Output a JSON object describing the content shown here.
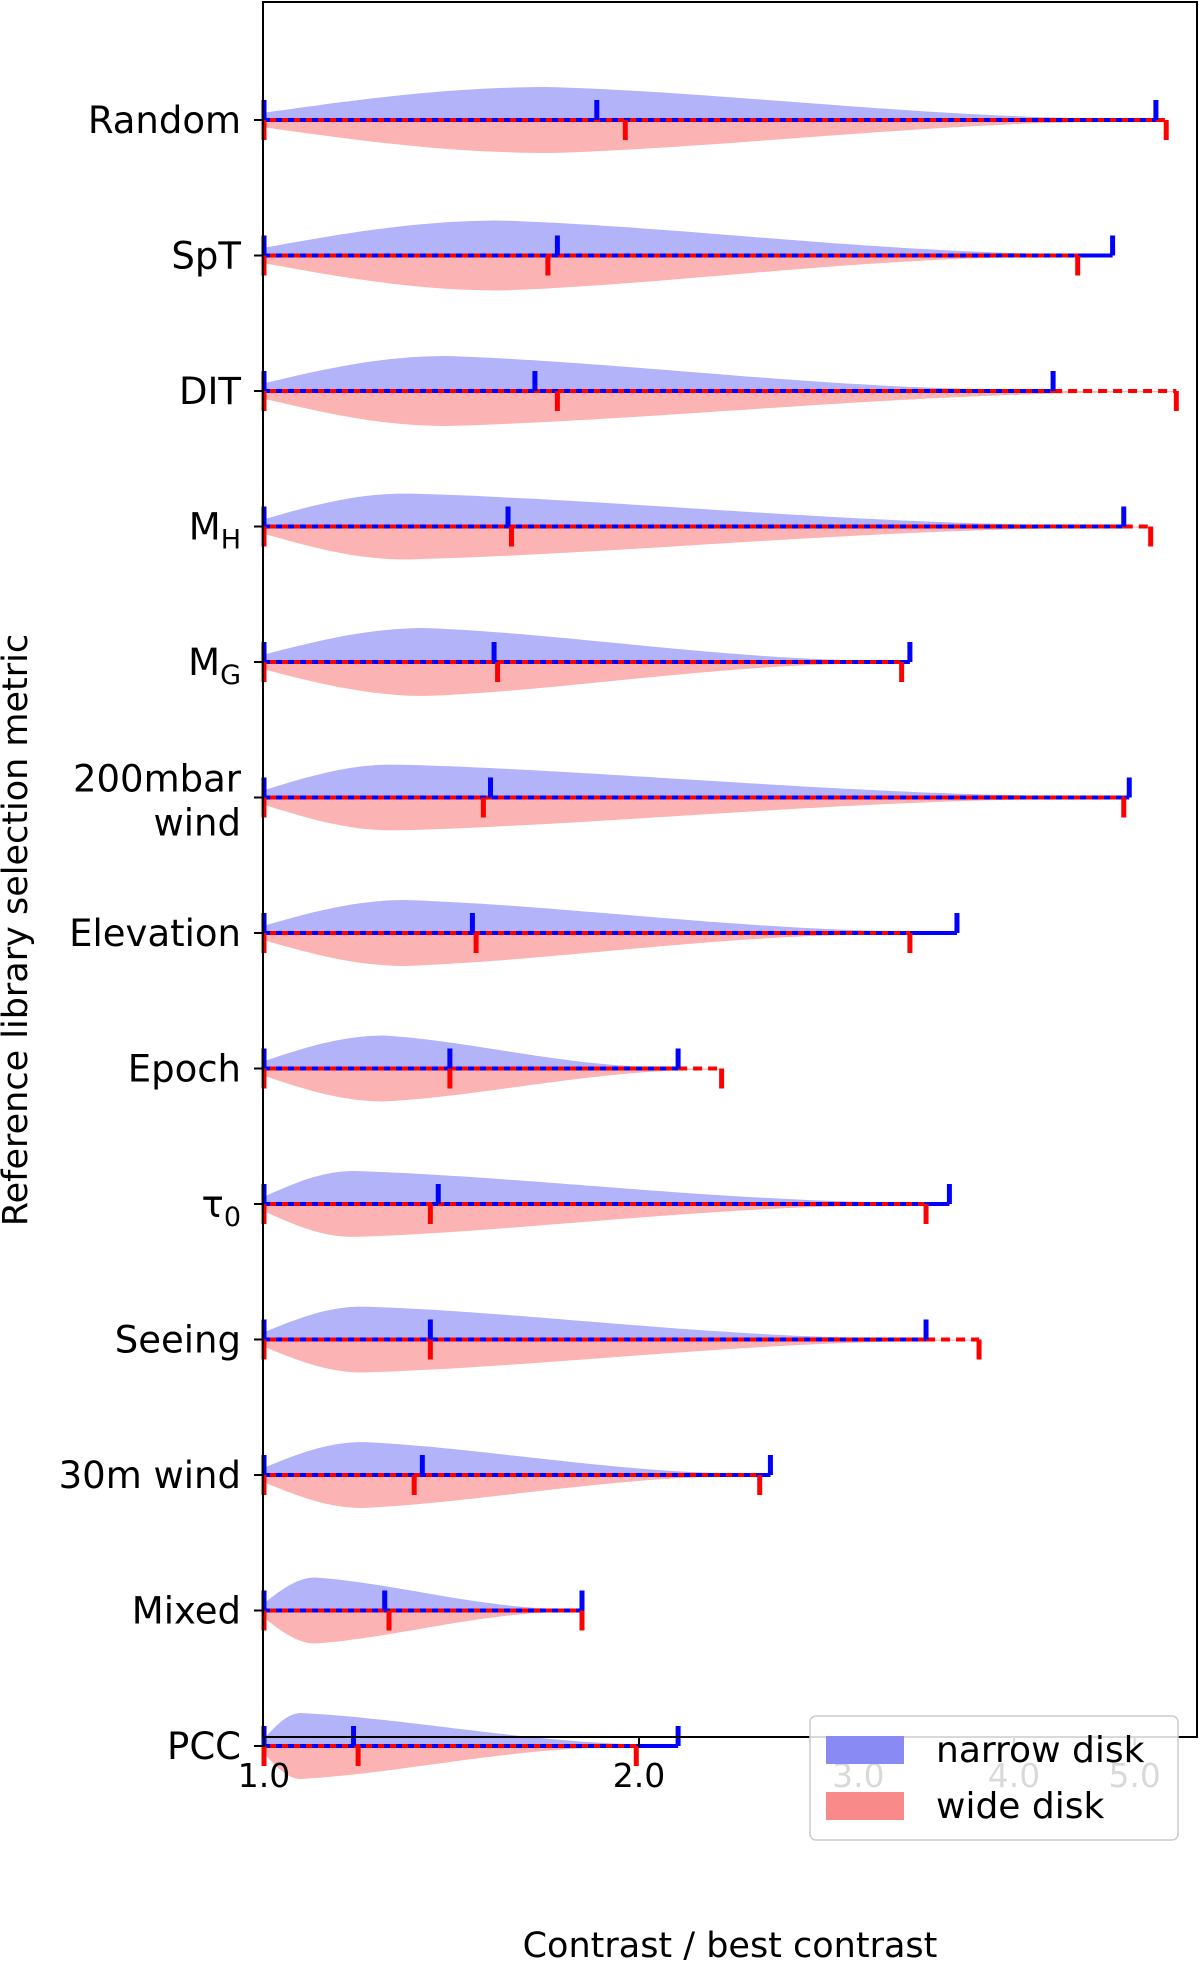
{
  "chart_data": {
    "type": "violin",
    "orientation": "horizontal",
    "xlabel": "Contrast / best contrast",
    "ylabel": "Reference library selection metric",
    "xscale": "log",
    "xlim": [
      1.0,
      5.6
    ],
    "xticks": [
      {
        "value": 1.0,
        "label": "1.0"
      },
      {
        "value": 2.0,
        "label": "2.0"
      },
      {
        "value": 3.0,
        "label": "3.0"
      },
      {
        "value": 4.0,
        "label": "4.0"
      },
      {
        "value": 5.0,
        "label": "5.0"
      }
    ],
    "legend": {
      "position": "bottom-right",
      "entries": [
        {
          "label": "narrow disk",
          "color": "#8a8af5"
        },
        {
          "label": "wide disk",
          "color": "#f88a8a"
        }
      ]
    },
    "colors": {
      "narrow": "#0000ff",
      "wide": "#ff0000",
      "narrow_fill": "#b3b3fa",
      "wide_fill": "#fbb3b3"
    },
    "categories": [
      {
        "label": "Random",
        "sub": "",
        "narrow": {
          "min": 1.0,
          "median": 1.85,
          "max": 5.2,
          "peak": 1.7,
          "halfwidth": 33
        },
        "wide": {
          "min": 1.0,
          "median": 1.95,
          "max": 5.3,
          "peak": 1.7,
          "halfwidth": 33
        }
      },
      {
        "label": "SpT",
        "sub": "",
        "narrow": {
          "min": 1.0,
          "median": 1.72,
          "max": 4.8,
          "peak": 1.55,
          "halfwidth": 35
        },
        "wide": {
          "min": 1.0,
          "median": 1.69,
          "max": 4.5,
          "peak": 1.55,
          "halfwidth": 35
        }
      },
      {
        "label": "DIT",
        "sub": "",
        "narrow": {
          "min": 1.0,
          "median": 1.65,
          "max": 4.3,
          "peak": 1.4,
          "halfwidth": 35
        },
        "wide": {
          "min": 1.0,
          "median": 1.72,
          "max": 5.4,
          "peak": 1.4,
          "halfwidth": 35
        }
      },
      {
        "label": "M",
        "sub": "H",
        "narrow": {
          "min": 1.0,
          "median": 1.57,
          "max": 4.9,
          "peak": 1.3,
          "halfwidth": 33
        },
        "wide": {
          "min": 1.0,
          "median": 1.58,
          "max": 5.15,
          "peak": 1.3,
          "halfwidth": 33
        }
      },
      {
        "label": "M",
        "sub": "G",
        "narrow": {
          "min": 1.0,
          "median": 1.53,
          "max": 3.3,
          "peak": 1.35,
          "halfwidth": 34
        },
        "wide": {
          "min": 1.0,
          "median": 1.54,
          "max": 3.25,
          "peak": 1.35,
          "halfwidth": 34
        }
      },
      {
        "label": "200mbar",
        "sub": "",
        "label2": "wind",
        "narrow": {
          "min": 1.0,
          "median": 1.52,
          "max": 4.95,
          "peak": 1.27,
          "halfwidth": 33
        },
        "wide": {
          "min": 1.0,
          "median": 1.5,
          "max": 4.9,
          "peak": 1.27,
          "halfwidth": 33
        }
      },
      {
        "label": "Elevation",
        "sub": "",
        "narrow": {
          "min": 1.0,
          "median": 1.47,
          "max": 3.6,
          "peak": 1.3,
          "halfwidth": 33
        },
        "wide": {
          "min": 1.0,
          "median": 1.48,
          "max": 3.3,
          "peak": 1.3,
          "halfwidth": 33
        }
      },
      {
        "label": "Epoch",
        "sub": "",
        "narrow": {
          "min": 1.0,
          "median": 1.41,
          "max": 2.15,
          "peak": 1.25,
          "halfwidth": 33
        },
        "wide": {
          "min": 1.0,
          "median": 1.41,
          "max": 2.33,
          "peak": 1.25,
          "halfwidth": 33
        }
      },
      {
        "label": "τ",
        "sub": "0",
        "narrow": {
          "min": 1.0,
          "median": 1.38,
          "max": 3.55,
          "peak": 1.18,
          "halfwidth": 33
        },
        "wide": {
          "min": 1.0,
          "median": 1.36,
          "max": 3.4,
          "peak": 1.18,
          "halfwidth": 33
        }
      },
      {
        "label": "Seeing",
        "sub": "",
        "narrow": {
          "min": 1.0,
          "median": 1.36,
          "max": 3.4,
          "peak": 1.2,
          "halfwidth": 33
        },
        "wide": {
          "min": 1.0,
          "median": 1.36,
          "max": 3.75,
          "peak": 1.2,
          "halfwidth": 33
        }
      },
      {
        "label": "30m wind",
        "sub": "",
        "narrow": {
          "min": 1.0,
          "median": 1.34,
          "max": 2.55,
          "peak": 1.2,
          "halfwidth": 33
        },
        "wide": {
          "min": 1.0,
          "median": 1.32,
          "max": 2.5,
          "peak": 1.2,
          "halfwidth": 33
        }
      },
      {
        "label": "Mixed",
        "sub": "",
        "narrow": {
          "min": 1.0,
          "median": 1.25,
          "max": 1.8,
          "peak": 1.1,
          "halfwidth": 33
        },
        "wide": {
          "min": 1.0,
          "median": 1.26,
          "max": 1.8,
          "peak": 1.1,
          "halfwidth": 33
        }
      },
      {
        "label": "PCC",
        "sub": "",
        "narrow": {
          "min": 1.0,
          "median": 1.18,
          "max": 2.15,
          "peak": 1.07,
          "halfwidth": 33
        },
        "wide": {
          "min": 1.0,
          "median": 1.19,
          "max": 1.99,
          "peak": 1.07,
          "halfwidth": 33
        }
      }
    ]
  }
}
